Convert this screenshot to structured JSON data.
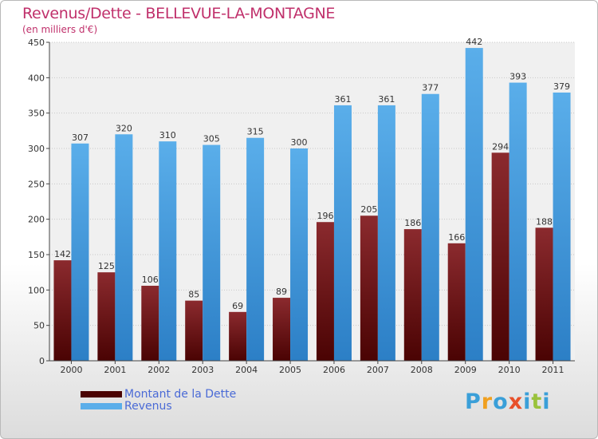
{
  "chart_data": {
    "type": "bar",
    "title": "Revenus/Dette - BELLEVUE-LA-MONTAGNE",
    "subtitle": "(en milliers d'€)",
    "categories": [
      "2000",
      "2001",
      "2002",
      "2003",
      "2004",
      "2005",
      "2006",
      "2007",
      "2008",
      "2009",
      "2010",
      "2011"
    ],
    "series": [
      {
        "name": "Montant de la Dette",
        "values": [
          142,
          125,
          106,
          85,
          69,
          89,
          196,
          205,
          186,
          166,
          294,
          188
        ],
        "color_top": "#8b2a2e",
        "color_bottom": "#4a0303"
      },
      {
        "name": "Revenus",
        "values": [
          307,
          320,
          310,
          305,
          315,
          300,
          361,
          361,
          377,
          442,
          393,
          379
        ],
        "color_top": "#5aaeea",
        "color_bottom": "#2c7fc6"
      }
    ],
    "ylim": [
      0,
      450
    ],
    "yticks": [
      0,
      50,
      100,
      150,
      200,
      250,
      300,
      350,
      400,
      450
    ],
    "grid": true,
    "legend_position": "bottom-left"
  },
  "logo": {
    "text": "Proxiti",
    "letters": [
      "P",
      "r",
      "o",
      "x",
      "i",
      "t",
      "i"
    ],
    "colors": [
      "#3a9fd8",
      "#f0a020",
      "#3a9fd8",
      "#e8502a",
      "#3a9fd8",
      "#9ac23c",
      "#3a9fd8"
    ]
  }
}
